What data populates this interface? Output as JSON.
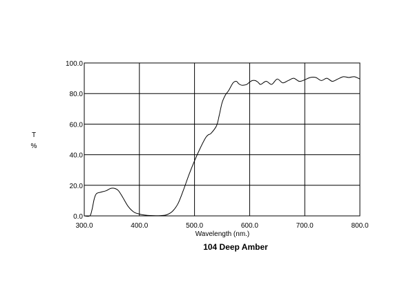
{
  "chart_data": {
    "type": "line",
    "title": "104 Deep Amber",
    "xlabel": "Wavelength (nm.)",
    "ylabel_top": "T",
    "ylabel_bottom": "%",
    "xlim": [
      300,
      800
    ],
    "ylim": [
      0,
      100
    ],
    "x_ticks": [
      "300.0",
      "400.0",
      "500.0",
      "600.0",
      "700.0",
      "800.0"
    ],
    "y_ticks": [
      "0.0",
      "20.0",
      "40.0",
      "60.0",
      "80.0",
      "100.0"
    ],
    "grid": true,
    "series": [
      {
        "x": [
          300,
          310,
          314,
          318,
          322,
          330,
          340,
          348,
          355,
          362,
          370,
          380,
          390,
          400,
          410,
          420,
          430,
          440,
          450,
          460,
          470,
          480,
          490,
          500,
          510,
          520,
          525,
          530,
          540,
          545,
          550,
          556,
          562,
          570,
          576,
          580,
          585,
          590,
          595,
          600,
          605,
          610,
          615,
          620,
          630,
          640,
          650,
          660,
          670,
          680,
          690,
          700,
          710,
          720,
          730,
          740,
          750,
          760,
          770,
          780,
          790,
          800
        ],
        "y": [
          0,
          0,
          4,
          11,
          14.5,
          15.5,
          16.5,
          18,
          18,
          16.5,
          12,
          6,
          2.5,
          1.2,
          0.5,
          0.2,
          0.1,
          0.2,
          0.8,
          3,
          8,
          17,
          27,
          36,
          44,
          51,
          53,
          54,
          59,
          66,
          74,
          79,
          82,
          87,
          88,
          86.5,
          85.5,
          85.5,
          86,
          87.5,
          88.5,
          88.5,
          87.5,
          86,
          88,
          86,
          89.5,
          87,
          88.5,
          90,
          88,
          89,
          90.5,
          90.5,
          88.5,
          90,
          88,
          89.5,
          91,
          90.5,
          91,
          89.5
        ]
      }
    ]
  }
}
